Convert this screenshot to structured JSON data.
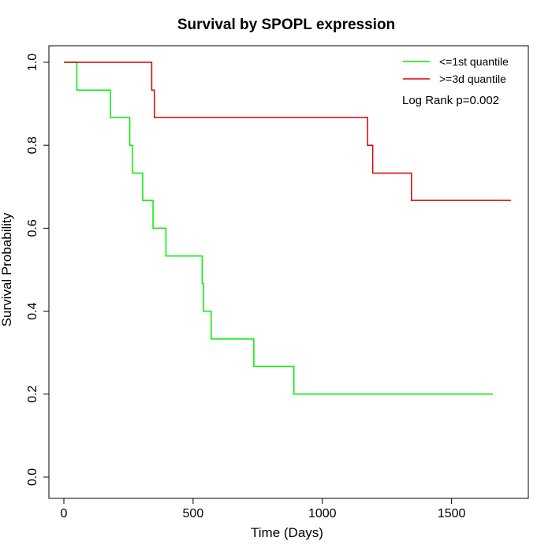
{
  "chart_data": {
    "type": "line",
    "title": "Survival by SPOPL expression",
    "xlabel": "Time (Days)",
    "ylabel": "Survival Probability",
    "xlim": [
      0,
      1780
    ],
    "ylim": [
      0,
      1.0
    ],
    "x_ticks": [
      0,
      500,
      1000,
      1500
    ],
    "x_tick_labels": [
      "0",
      "500",
      "1000",
      "1500"
    ],
    "y_ticks": [
      0.0,
      0.2,
      0.4,
      0.6,
      0.8,
      1.0
    ],
    "y_tick_labels": [
      "0.0",
      "0.2",
      "0.4",
      "0.6",
      "0.8",
      "1.0"
    ],
    "grid": false,
    "step": true,
    "legend_position": "top-right",
    "annotation": "Log Rank p=0.002",
    "series": [
      {
        "name": "<=1st quantile",
        "color": "#00ee00",
        "points": [
          [
            0,
            1.0
          ],
          [
            50,
            0.933
          ],
          [
            180,
            0.867
          ],
          [
            255,
            0.8
          ],
          [
            265,
            0.733
          ],
          [
            305,
            0.667
          ],
          [
            345,
            0.6
          ],
          [
            395,
            0.533
          ],
          [
            535,
            0.467
          ],
          [
            540,
            0.4
          ],
          [
            570,
            0.333
          ],
          [
            735,
            0.267
          ],
          [
            890,
            0.2
          ],
          [
            1660,
            0.2
          ]
        ]
      },
      {
        "name": ">=3d quantile",
        "color": "#dd0000",
        "points": [
          [
            0,
            1.0
          ],
          [
            340,
            0.933
          ],
          [
            350,
            0.867
          ],
          [
            1175,
            0.8
          ],
          [
            1195,
            0.733
          ],
          [
            1345,
            0.667
          ],
          [
            1730,
            0.667
          ]
        ]
      }
    ]
  }
}
